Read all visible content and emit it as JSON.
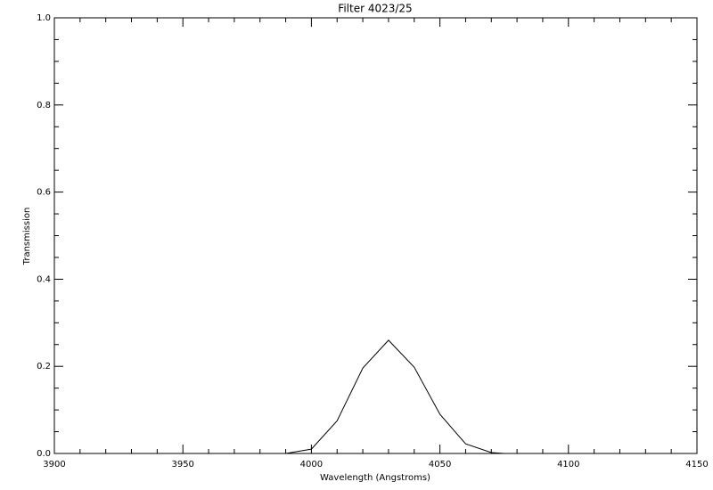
{
  "chart_data": {
    "type": "line",
    "title": "Filter 4023/25",
    "x_label": "Wavelength (Angstroms)",
    "y_label": "Transmission",
    "x": [
      3990,
      4000,
      4010,
      4020,
      4030,
      4040,
      4050,
      4060,
      4070,
      4075
    ],
    "series": [
      {
        "color": "#000000",
        "values": [
          0.0,
          0.01,
          0.075,
          0.196,
          0.26,
          0.198,
          0.09,
          0.022,
          0.002,
          0.0
        ]
      }
    ],
    "xlim": [
      3900,
      4150
    ],
    "xticks": [
      3900,
      3950,
      4000,
      4050,
      4100,
      4150
    ],
    "xminorticks": [
      3910,
      3920,
      3930,
      3940,
      3960,
      3970,
      3980,
      3990,
      4010,
      4020,
      4030,
      4040,
      4060,
      4070,
      4080,
      4090,
      4110,
      4120,
      4130,
      4140
    ],
    "ylim": [
      0,
      1
    ],
    "yticks": [
      {
        "value": 0,
        "label": "0.0"
      },
      {
        "value": 0.2,
        "label": "0.2"
      },
      {
        "value": 0.4,
        "label": "0.4"
      },
      {
        "value": 0.6,
        "label": "0.6"
      },
      {
        "value": 0.8,
        "label": "0.8"
      },
      {
        "value": 1,
        "label": "1.0"
      }
    ],
    "yminorticks": [
      0.05,
      0.1,
      0.15,
      0.25,
      0.3,
      0.35,
      0.45,
      0.5,
      0.55,
      0.65,
      0.7,
      0.75,
      0.85,
      0.9,
      0.95
    ],
    "grid": false
  }
}
